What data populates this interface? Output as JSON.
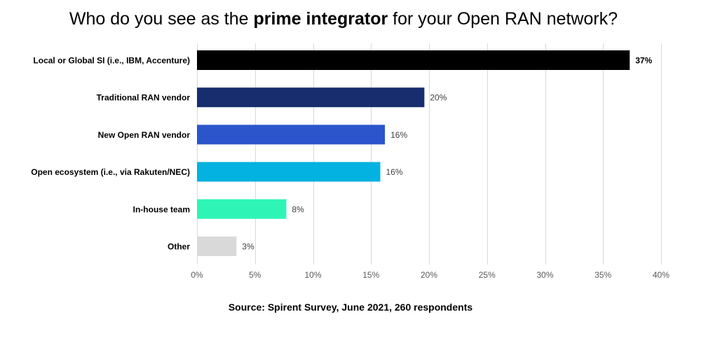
{
  "title": {
    "prefix": "Who do you see as the ",
    "emphasis": "prime integrator",
    "suffix": " for your Open RAN network?"
  },
  "source": "Source: Spirent Survey, June 2021, 260 respondents",
  "chart_data": {
    "type": "bar",
    "orientation": "horizontal",
    "title": "Who do you see as the prime integrator for your Open RAN network?",
    "xlabel": "",
    "ylabel": "",
    "xlim": [
      0,
      40
    ],
    "grid": true,
    "categories": [
      "Local or Global SI (i.e., IBM, Accenture)",
      "Traditional RAN vendor",
      "New Open RAN vendor",
      "Open ecosystem (i.e., via Rakuten/NEC)",
      "In-house team",
      "Other"
    ],
    "values": [
      37.3,
      19.6,
      16.2,
      15.8,
      7.7,
      3.4
    ],
    "data_labels": [
      "37%",
      "20%",
      "16%",
      "16%",
      "8%",
      "3%"
    ],
    "colors": [
      "#000000",
      "#172d6e",
      "#2c55cc",
      "#03b2e0",
      "#2ef5b5",
      "#d9d9d9"
    ],
    "x_ticks": [
      0,
      5,
      10,
      15,
      20,
      25,
      30,
      35,
      40
    ],
    "x_tick_labels": [
      "0%",
      "5%",
      "10%",
      "15%",
      "20%",
      "25%",
      "30%",
      "35%",
      "40%"
    ]
  },
  "style": {
    "grid_color": "#d9d9d9",
    "tick_label_color": "#595959",
    "category_label_color": "#000000"
  }
}
